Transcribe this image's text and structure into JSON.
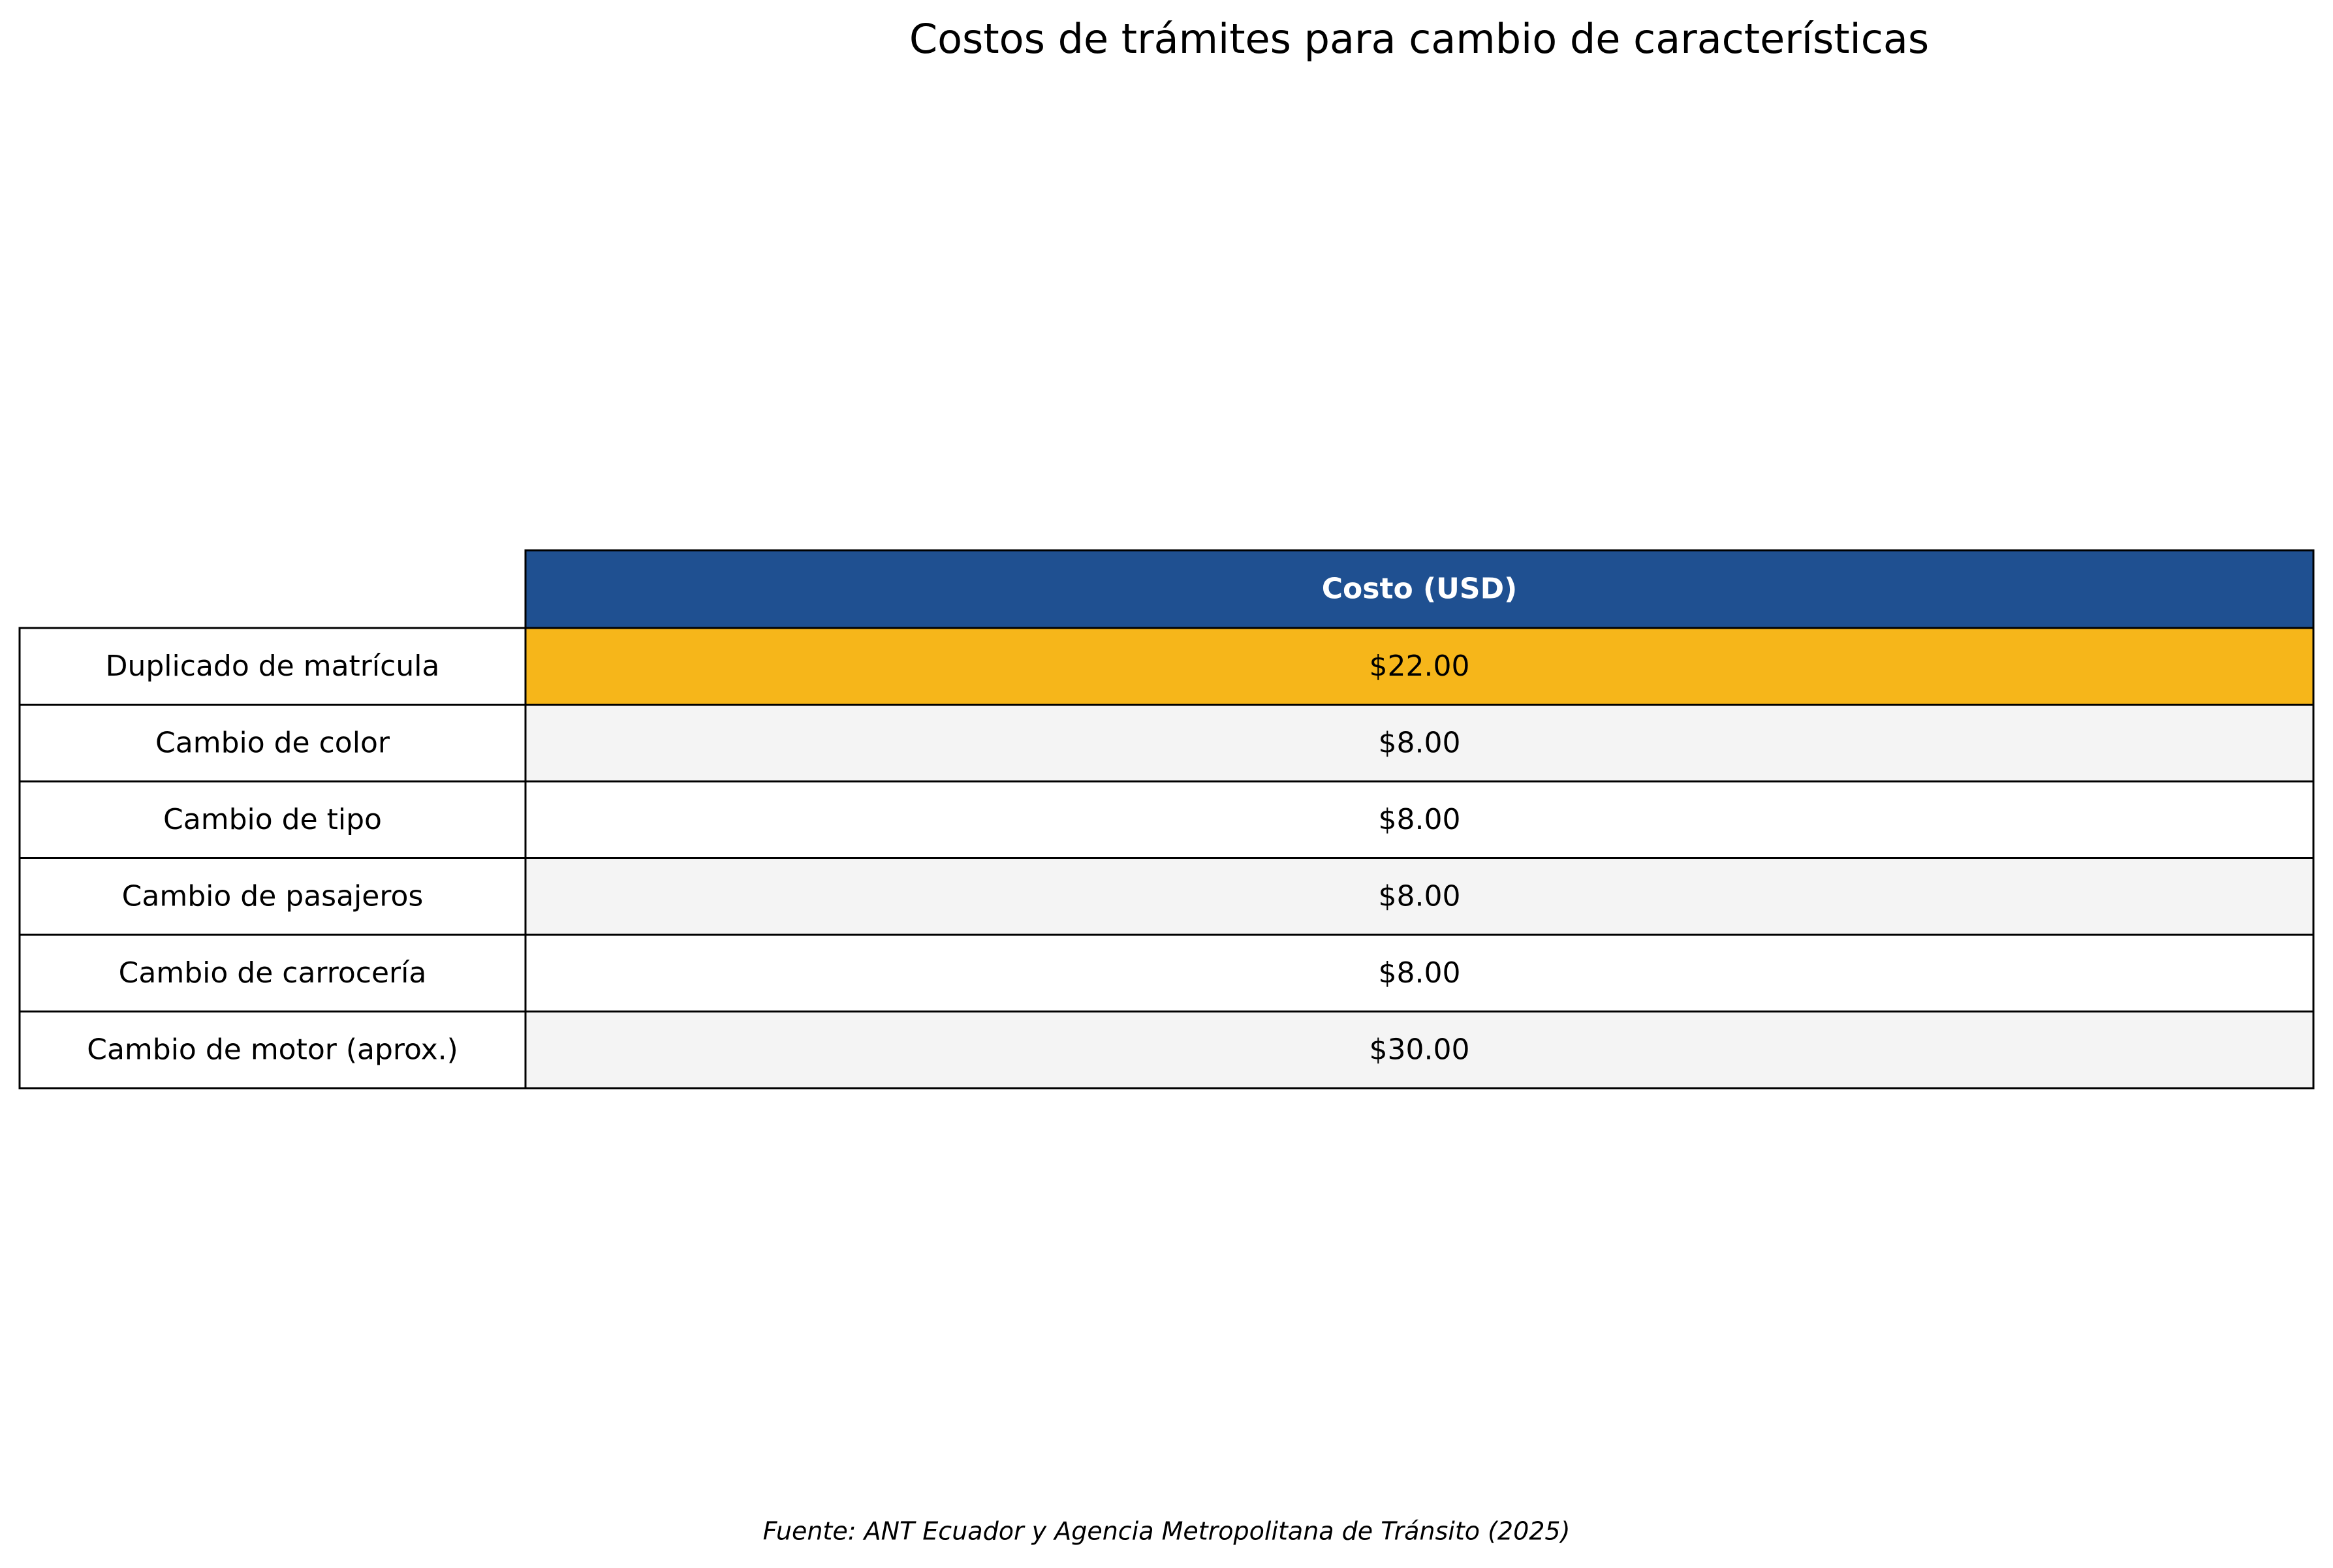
{
  "title": "Costos de trámites para cambio de características",
  "table": {
    "header": [
      "Costo (USD)"
    ],
    "rows": [
      [
        "Duplicado de matrícula",
        "$22.00"
      ],
      [
        "Cambio de color",
        "$8.00"
      ],
      [
        "Cambio de tipo",
        "$8.00"
      ],
      [
        "Cambio de pasajeros",
        "$8.00"
      ],
      [
        "Cambio de carrocería",
        "$8.00"
      ],
      [
        "Cambio de motor (aprox.)",
        "$30.00"
      ]
    ]
  },
  "source": "Fuente: ANT Ecuador y Agencia Metropolitana de Tránsito (2025)"
}
